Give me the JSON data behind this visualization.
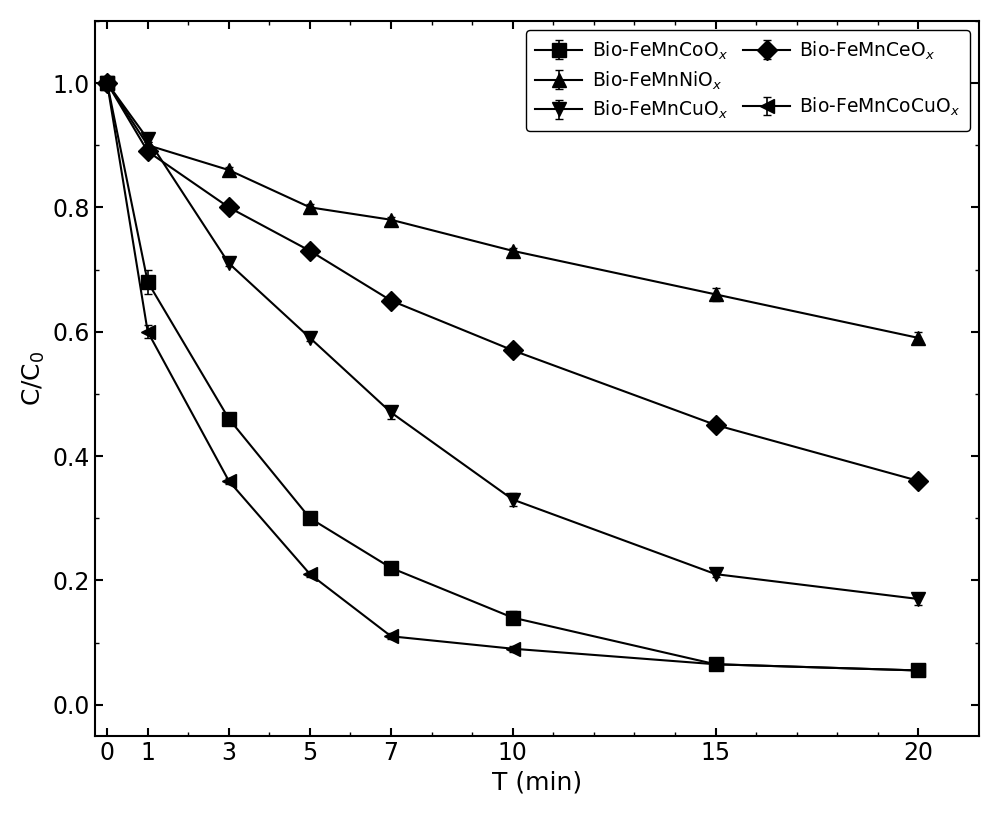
{
  "series": [
    {
      "label": "Bio-FeMnCoO$_x$",
      "marker": "s",
      "x": [
        0,
        1,
        3,
        5,
        7,
        10,
        15,
        20
      ],
      "y": [
        1.0,
        0.68,
        0.46,
        0.3,
        0.22,
        0.14,
        0.065,
        0.055
      ],
      "yerr": [
        0.0,
        0.02,
        0.0,
        0.01,
        0.01,
        0.01,
        0.005,
        0.005
      ]
    },
    {
      "label": "Bio-FeMnNiO$_x$",
      "marker": "^",
      "x": [
        0,
        1,
        3,
        5,
        7,
        10,
        15,
        20
      ],
      "y": [
        1.0,
        0.9,
        0.86,
        0.8,
        0.78,
        0.73,
        0.66,
        0.59
      ],
      "yerr": [
        0.0,
        0.005,
        0.005,
        0.005,
        0.005,
        0.005,
        0.01,
        0.01
      ]
    },
    {
      "label": "Bio-FeMnCuO$_x$",
      "marker": "v",
      "x": [
        0,
        1,
        3,
        5,
        7,
        10,
        15,
        20
      ],
      "y": [
        1.0,
        0.91,
        0.71,
        0.59,
        0.47,
        0.33,
        0.21,
        0.17
      ],
      "yerr": [
        0.0,
        0.005,
        0.005,
        0.005,
        0.01,
        0.01,
        0.005,
        0.01
      ]
    },
    {
      "label": "Bio-FeMnCeO$_x$",
      "marker": "D",
      "x": [
        0,
        1,
        3,
        5,
        7,
        10,
        15,
        20
      ],
      "y": [
        1.0,
        0.89,
        0.8,
        0.73,
        0.65,
        0.57,
        0.45,
        0.36
      ],
      "yerr": [
        0.0,
        0.005,
        0.005,
        0.005,
        0.005,
        0.005,
        0.005,
        0.005
      ]
    },
    {
      "label": "Bio-FeMnCoCuO$_x$",
      "marker": "<",
      "x": [
        0,
        1,
        3,
        5,
        7,
        10,
        15,
        20
      ],
      "y": [
        1.0,
        0.6,
        0.36,
        0.21,
        0.11,
        0.09,
        0.065,
        0.055
      ],
      "yerr": [
        0.0,
        0.01,
        0.005,
        0.005,
        0.005,
        0.005,
        0.005,
        0.005
      ]
    }
  ],
  "xlabel": "T (min)",
  "ylabel": "C/C$_0$",
  "xlim": [
    -0.3,
    21.5
  ],
  "ylim": [
    -0.05,
    1.1
  ],
  "xticks": [
    0,
    1,
    3,
    5,
    7,
    10,
    15,
    20
  ],
  "yticks": [
    0.0,
    0.2,
    0.4,
    0.6,
    0.8,
    1.0
  ],
  "line_color": "black",
  "marker_color": "black",
  "marker_size": 10,
  "linewidth": 1.5,
  "legend_loc": "upper right",
  "legend_ncol": 2,
  "fontsize_axis": 18,
  "fontsize_tick": 17,
  "fontsize_legend": 13.5,
  "legend_order": [
    0,
    1,
    2,
    3,
    4
  ]
}
